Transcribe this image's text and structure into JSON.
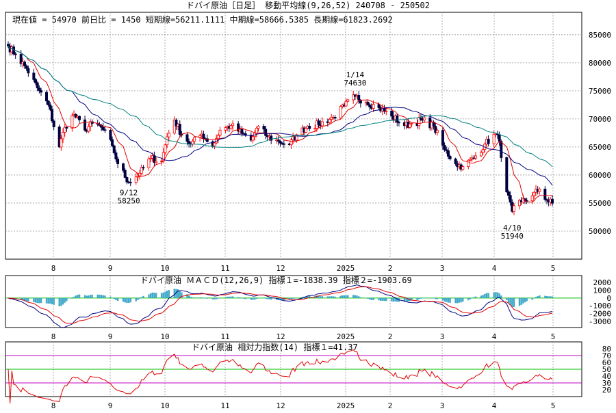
{
  "colors": {
    "up": "#ff0000",
    "down": "#000040",
    "short_ma": "#e00000",
    "mid_ma": "#000080",
    "long_ma": "#008080",
    "macd_hist": "#40a8c8",
    "macd_zero": "#00c000",
    "rsi_line": "#e00000",
    "rsi_band_high": "#c000c0",
    "rsi_band_mid": "#00c000"
  },
  "main": {
    "title": "ドバイ原油［日足］ 移動平均線(9,26,52)  240708 - 250502",
    "info": "現在値 = 54970  前日比 = 1450   短期線=56211.1111   中期線=58666.5385   長期線=61823.2692",
    "annotations": [
      {
        "line1": "9/12",
        "line2": "58250",
        "date": "2024-09-12",
        "value": 58250,
        "position": "below"
      },
      {
        "line1": "1/14",
        "line2": "74630",
        "date": "2025-01-14",
        "value": 74630,
        "position": "above"
      },
      {
        "line1": "4/10",
        "line2": "51940",
        "date": "2025-04-10",
        "value": 51940,
        "position": "below"
      }
    ]
  },
  "macd_panel": {
    "title": "ドバイ原油   ＭＡＣＤ(12,26,9) 指標１=-1838.39  指標２=-1903.69"
  },
  "rsi_panel": {
    "title": "ドバイ原油   相対力指数(14) 指標１=41.37"
  },
  "chart_data": [
    {
      "type": "candlestick",
      "title": "ドバイ原油［日足］ 移動平均線(9,26,52)  240708 - 250502",
      "x_tick_labels": [
        "8",
        "9",
        "10",
        "11",
        "12",
        "2025",
        "2",
        "3",
        "4",
        "5"
      ],
      "y_ticks": [
        50000,
        55000,
        60000,
        65000,
        70000,
        75000,
        80000,
        85000
      ],
      "ylim": [
        45000,
        89000
      ],
      "grid": true,
      "anchors": [
        {
          "date": "2024-07-08",
          "close": 83000
        },
        {
          "date": "2024-07-12",
          "close": 81500
        },
        {
          "date": "2024-07-18",
          "close": 79000
        },
        {
          "date": "2024-07-24",
          "close": 75500
        },
        {
          "date": "2024-07-30",
          "close": 72500
        },
        {
          "date": "2024-08-05",
          "close": 65000
        },
        {
          "date": "2024-08-08",
          "close": 68500
        },
        {
          "date": "2024-08-13",
          "close": 70800
        },
        {
          "date": "2024-08-19",
          "close": 68000
        },
        {
          "date": "2024-08-23",
          "close": 69200
        },
        {
          "date": "2024-08-28",
          "close": 68500
        },
        {
          "date": "2024-09-03",
          "close": 65200
        },
        {
          "date": "2024-09-06",
          "close": 62000
        },
        {
          "date": "2024-09-12",
          "close": 58700
        },
        {
          "date": "2024-09-18",
          "close": 60300
        },
        {
          "date": "2024-09-24",
          "close": 63000
        },
        {
          "date": "2024-09-30",
          "close": 62500
        },
        {
          "date": "2024-10-03",
          "close": 66800
        },
        {
          "date": "2024-10-07",
          "close": 69800
        },
        {
          "date": "2024-10-11",
          "close": 67200
        },
        {
          "date": "2024-10-16",
          "close": 65500
        },
        {
          "date": "2024-10-22",
          "close": 67300
        },
        {
          "date": "2024-10-28",
          "close": 65200
        },
        {
          "date": "2024-11-01",
          "close": 68000
        },
        {
          "date": "2024-11-07",
          "close": 68800
        },
        {
          "date": "2024-11-13",
          "close": 67400
        },
        {
          "date": "2024-11-18",
          "close": 66200
        },
        {
          "date": "2024-11-22",
          "close": 68700
        },
        {
          "date": "2024-11-27",
          "close": 66800
        },
        {
          "date": "2024-12-03",
          "close": 66000
        },
        {
          "date": "2024-12-09",
          "close": 65400
        },
        {
          "date": "2024-12-13",
          "close": 67200
        },
        {
          "date": "2024-12-19",
          "close": 68700
        },
        {
          "date": "2024-12-25",
          "close": 69000
        },
        {
          "date": "2025-01-02",
          "close": 70300
        },
        {
          "date": "2025-01-08",
          "close": 72300
        },
        {
          "date": "2025-01-14",
          "close": 74000
        },
        {
          "date": "2025-01-20",
          "close": 73000
        },
        {
          "date": "2025-01-27",
          "close": 72000
        },
        {
          "date": "2025-02-03",
          "close": 70500
        },
        {
          "date": "2025-02-10",
          "close": 68800
        },
        {
          "date": "2025-02-14",
          "close": 69200
        },
        {
          "date": "2025-02-20",
          "close": 69800
        },
        {
          "date": "2025-02-26",
          "close": 68700
        },
        {
          "date": "2025-03-04",
          "close": 64500
        },
        {
          "date": "2025-03-10",
          "close": 62000
        },
        {
          "date": "2025-03-14",
          "close": 61500
        },
        {
          "date": "2025-03-20",
          "close": 63000
        },
        {
          "date": "2025-03-26",
          "close": 65500
        },
        {
          "date": "2025-04-01",
          "close": 67300
        },
        {
          "date": "2025-04-03",
          "close": 66000
        },
        {
          "date": "2025-04-07",
          "close": 57000
        },
        {
          "date": "2025-04-10",
          "close": 53500
        },
        {
          "date": "2025-04-15",
          "close": 55200
        },
        {
          "date": "2025-04-21",
          "close": 56300
        },
        {
          "date": "2025-04-25",
          "close": 57500
        },
        {
          "date": "2025-04-29",
          "close": 55500
        },
        {
          "date": "2025-05-02",
          "close": 54970
        }
      ],
      "series": [
        {
          "name": "短期線",
          "period": 9,
          "last": 56211.1111
        },
        {
          "name": "中期線",
          "period": 26,
          "last": 58666.5385
        },
        {
          "name": "長期線",
          "period": 52,
          "last": 61823.2692
        }
      ]
    },
    {
      "type": "line",
      "title": "ドバイ原油   ＭＡＣＤ(12,26,9)",
      "x_tick_labels": [
        "8",
        "9",
        "10",
        "11",
        "12",
        "2025",
        "2",
        "3",
        "4",
        "5"
      ],
      "y_ticks": [
        2000,
        1000,
        0,
        -1000,
        -2000,
        -3000
      ],
      "ylim": [
        -3800,
        2900
      ],
      "series": [
        {
          "name": "指標１",
          "last": -1838.39
        },
        {
          "name": "指標２",
          "last": -1903.69
        }
      ]
    },
    {
      "type": "line",
      "title": "ドバイ原油   相対力指数(14)",
      "x_tick_labels": [
        "8",
        "9",
        "10",
        "11",
        "12",
        "2025",
        "2",
        "3",
        "4",
        "5"
      ],
      "y_ticks": [
        80,
        70,
        60,
        50,
        40,
        30,
        20
      ],
      "ylim": [
        10,
        90
      ],
      "bands": [
        30,
        50,
        70
      ],
      "series": [
        {
          "name": "指標１",
          "last": 41.37
        }
      ]
    }
  ]
}
